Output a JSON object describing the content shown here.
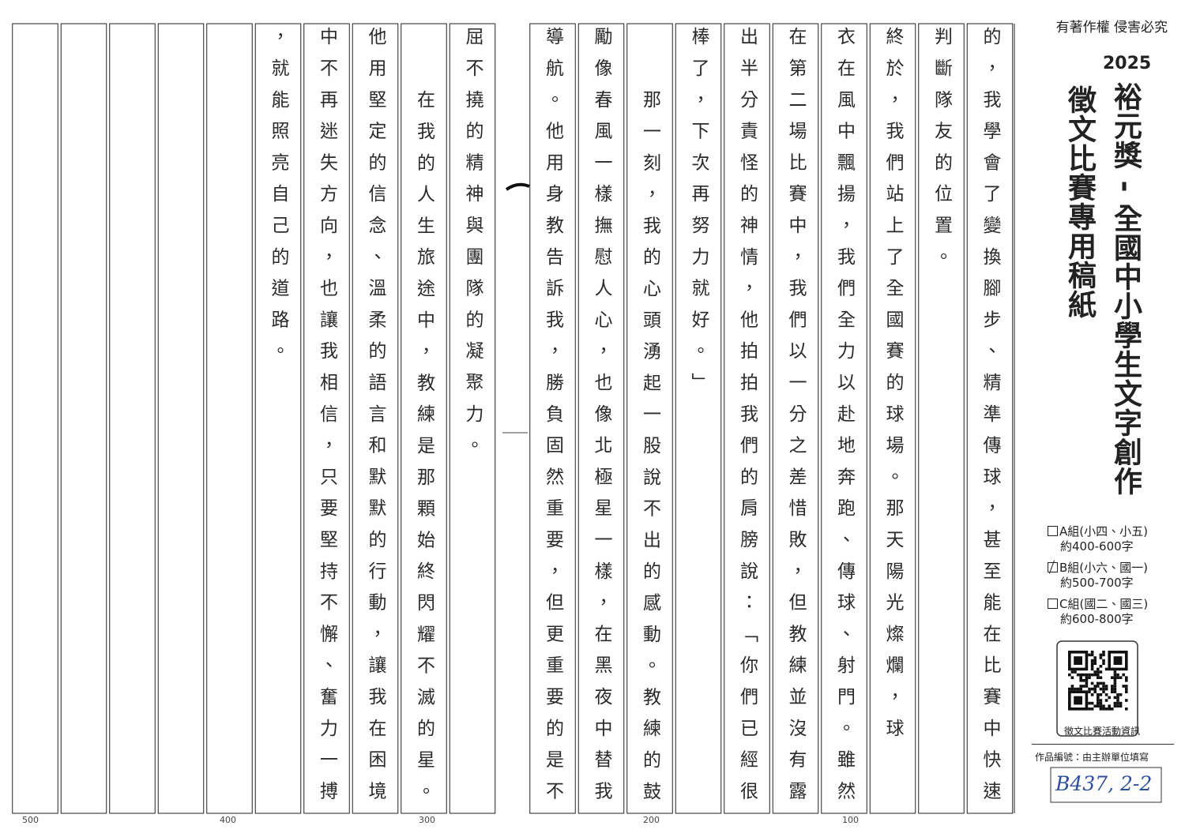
{
  "header": {
    "copyright": "有著作權 侵害必究"
  },
  "sidebar": {
    "year": "2025",
    "title": "裕元獎 - 全國中小學生文字創作",
    "subtitle": "徵文比賽專用稿紙",
    "groups": [
      {
        "name": "A組(小四、小五)",
        "words": "約400-600字",
        "checked": false
      },
      {
        "name": "B組(小六、國一)",
        "words": "約500-700字",
        "checked": true
      },
      {
        "name": "C組(國二、國三)",
        "words": "約600-800字",
        "checked": false
      }
    ],
    "qr_caption": "徵文比賽活動資訊",
    "entry_label": "作品編號：由主辦單位填寫",
    "entry_number": "B437, 2-2"
  },
  "manuscript": {
    "columns": [
      "的，我學會了變換腳步、精準傳球，甚至能在比賽中快速",
      "判斷隊友的位置。",
      "終於，我們站上了全國賽的球場。那天陽光燦爛，球",
      "衣在風中飄揚，我們全力以赴地奔跑、傳球、射門。雖然",
      "在第二場比賽中，我們以一分之差惜敗，但教練並沒有露",
      "出半分責怪的神情，他拍拍我們的肩膀說：「你們已經很",
      "棒了，下次再努力就好。」",
      "那一刻，我的心頭湧起一股說不出的感動。教練的鼓",
      "勵像春風一樣撫慰人心，也像北極星一樣，在黑夜中替我",
      "導航。他用身教告訴我，勝負固然重要，但更重要的是不",
      "屈不撓的精神與團隊的凝聚力。",
      "在我的人生旅途中，教練是那顆始終閃耀不滅的星。",
      "他用堅定的信念、溫柔的語言和默默的行動，讓我在困境",
      "中不再迷失方向，也讓我相信，只要堅持不懈、奮力一搏",
      "，就能照亮自己的道路。"
    ],
    "counter_marks": [
      "500",
      "400",
      "300",
      "200",
      "100"
    ]
  }
}
